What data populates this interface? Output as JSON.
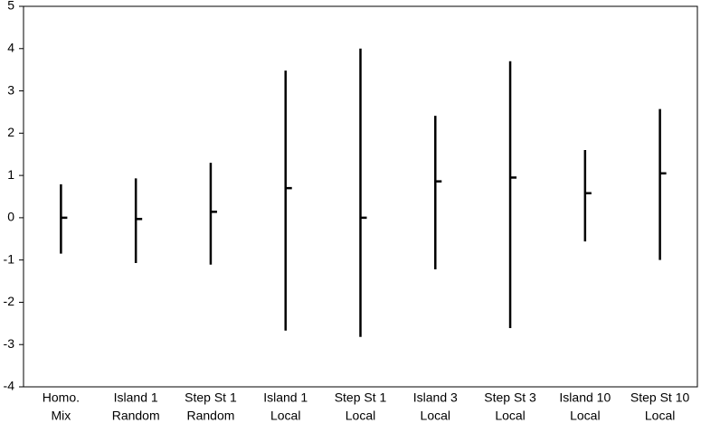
{
  "chart_data": {
    "type": "range",
    "categories": [
      [
        "Homo.",
        "Mix"
      ],
      [
        "Island 1",
        "Random"
      ],
      [
        "Step St 1",
        "Random"
      ],
      [
        "Island 1",
        "Local"
      ],
      [
        "Step St 1",
        "Local"
      ],
      [
        "Island 3",
        "Local"
      ],
      [
        "Step St 3",
        "Local"
      ],
      [
        "Island 10",
        "Local"
      ],
      [
        "Step St 10",
        "Local"
      ]
    ],
    "high": [
      0.79,
      0.93,
      1.3,
      3.48,
      4.0,
      2.41,
      3.7,
      1.6,
      2.57
    ],
    "low": [
      -0.85,
      -1.07,
      -1.11,
      -2.67,
      -2.82,
      -1.22,
      -2.61,
      -0.56,
      -1.0
    ],
    "mean": [
      0,
      -0.03,
      0.14,
      0.7,
      0,
      0.86,
      0.95,
      0.58,
      1.05
    ],
    "color": "#000000",
    "ylim": [
      -4,
      5
    ],
    "yticks": [
      -4,
      -3,
      -2,
      -1,
      0,
      1,
      2,
      3,
      4,
      5
    ],
    "grid": false
  }
}
